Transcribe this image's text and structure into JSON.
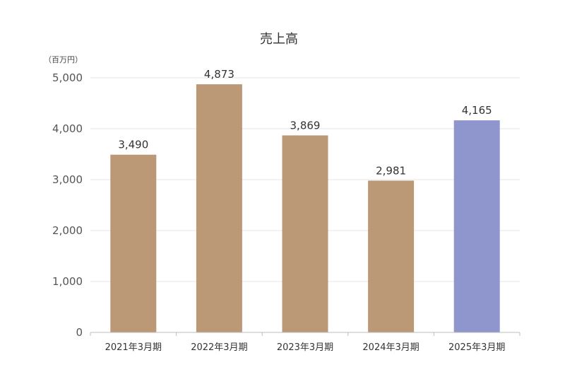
{
  "chart_data": {
    "type": "bar",
    "title": "売上高",
    "unit_label": "（百万円）",
    "categories": [
      "2021年3月期",
      "2022年3月期",
      "2023年3月期",
      "2024年3月期",
      "2025年3月期"
    ],
    "values": [
      3490,
      4873,
      3869,
      2981,
      4165
    ],
    "value_labels": [
      "3,490",
      "4,873",
      "3,869",
      "2,981",
      "4,165"
    ],
    "ylim": [
      0,
      5000
    ],
    "yticks": [
      0,
      1000,
      2000,
      3000,
      4000,
      5000
    ],
    "ytick_labels": [
      "0",
      "1,000",
      "2,000",
      "3,000",
      "4,000",
      "5,000"
    ],
    "grid": true,
    "colors": [
      "#bb9977",
      "#bb9977",
      "#bb9977",
      "#bb9977",
      "#8f96cd"
    ]
  }
}
